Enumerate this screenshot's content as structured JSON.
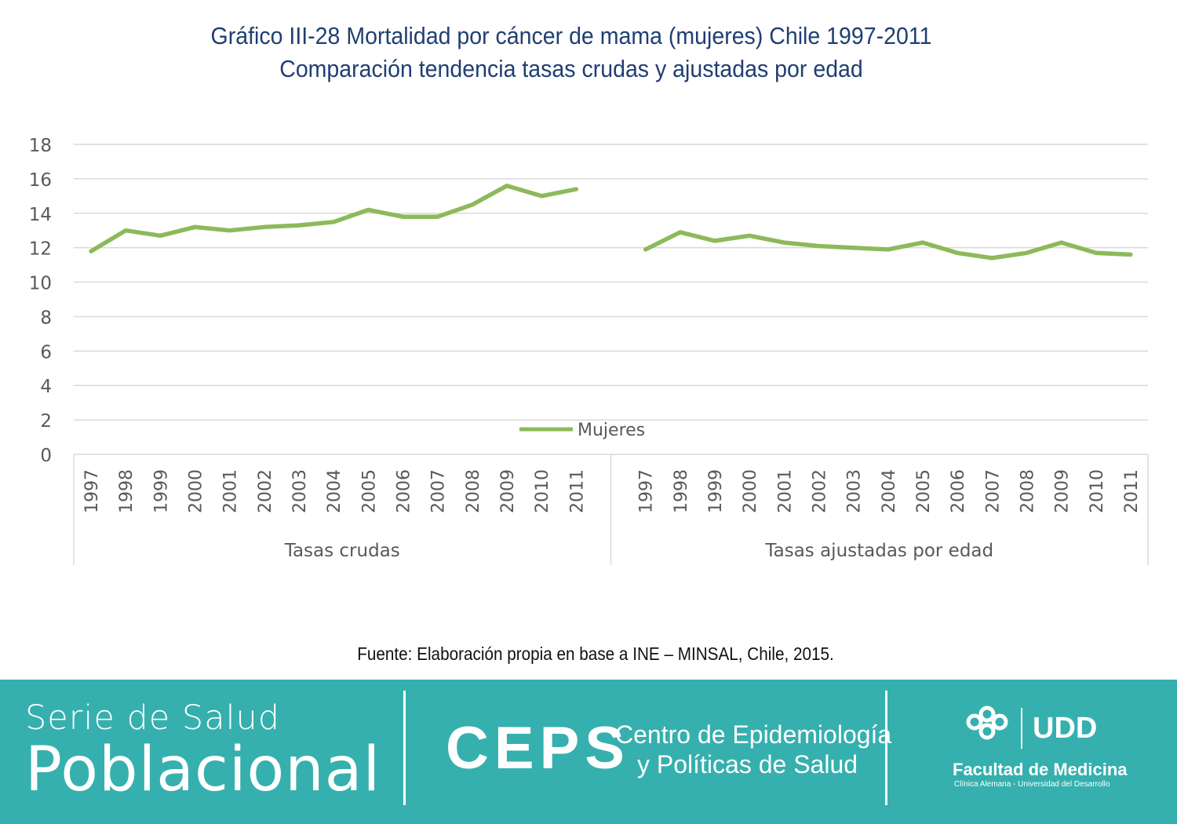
{
  "header": {
    "title_line_1": "Gráfico III-28 Mortalidad por cáncer de mama (mujeres) Chile 1997-2011",
    "title_line_2": "Comparación tendencia tasas crudas y ajustadas por edad"
  },
  "chart_data": {
    "type": "line",
    "title": "Gráfico III-28 Mortalidad por cáncer de mama (mujeres) Chile 1997-2011",
    "subtitle": "Comparación tendencia tasas crudas y ajustadas por edad",
    "ylim": [
      0,
      18
    ],
    "yticks": [
      "0",
      "2",
      "4",
      "6",
      "8",
      "10",
      "12",
      "14",
      "16",
      "18"
    ],
    "grid": true,
    "legend": "center",
    "legend_entries": [
      "Mujeres"
    ],
    "line_color": "#8cba5a",
    "groups": [
      {
        "label": "Tasas crudas",
        "categories": [
          "1997",
          "1998",
          "1999",
          "2000",
          "2001",
          "2002",
          "2003",
          "2004",
          "2005",
          "2006",
          "2007",
          "2008",
          "2009",
          "2010",
          "2011"
        ],
        "values": [
          11.8,
          13.0,
          12.7,
          13.2,
          13.0,
          13.2,
          13.3,
          13.5,
          14.2,
          13.8,
          13.8,
          14.5,
          15.6,
          15.0,
          15.4
        ]
      },
      {
        "label": "Tasas ajustadas por edad",
        "categories": [
          "1997",
          "1998",
          "1999",
          "2000",
          "2001",
          "2002",
          "2003",
          "2004",
          "2005",
          "2006",
          "2007",
          "2008",
          "2009",
          "2010",
          "2011"
        ],
        "values": [
          11.9,
          12.9,
          12.4,
          12.7,
          12.3,
          12.1,
          12.0,
          11.9,
          12.3,
          11.7,
          11.4,
          11.7,
          12.3,
          11.7,
          11.6
        ]
      }
    ]
  },
  "source": "Fuente: Elaboración propia en base a INE – MINSAL, Chile, 2015.",
  "footer": {
    "serie_line_1": "Serie de Salud",
    "serie_line_2": "Poblacional",
    "ceps_acronym": "CEPS",
    "ceps_line_1": "Centro de Epidemiología",
    "ceps_line_2": "y Políticas de Salud",
    "udd_logo_text": "UDD",
    "faculty": "Facultad de Medicina",
    "faculty_sub": "Clínica Alemana - Universidad del Desarrollo"
  }
}
